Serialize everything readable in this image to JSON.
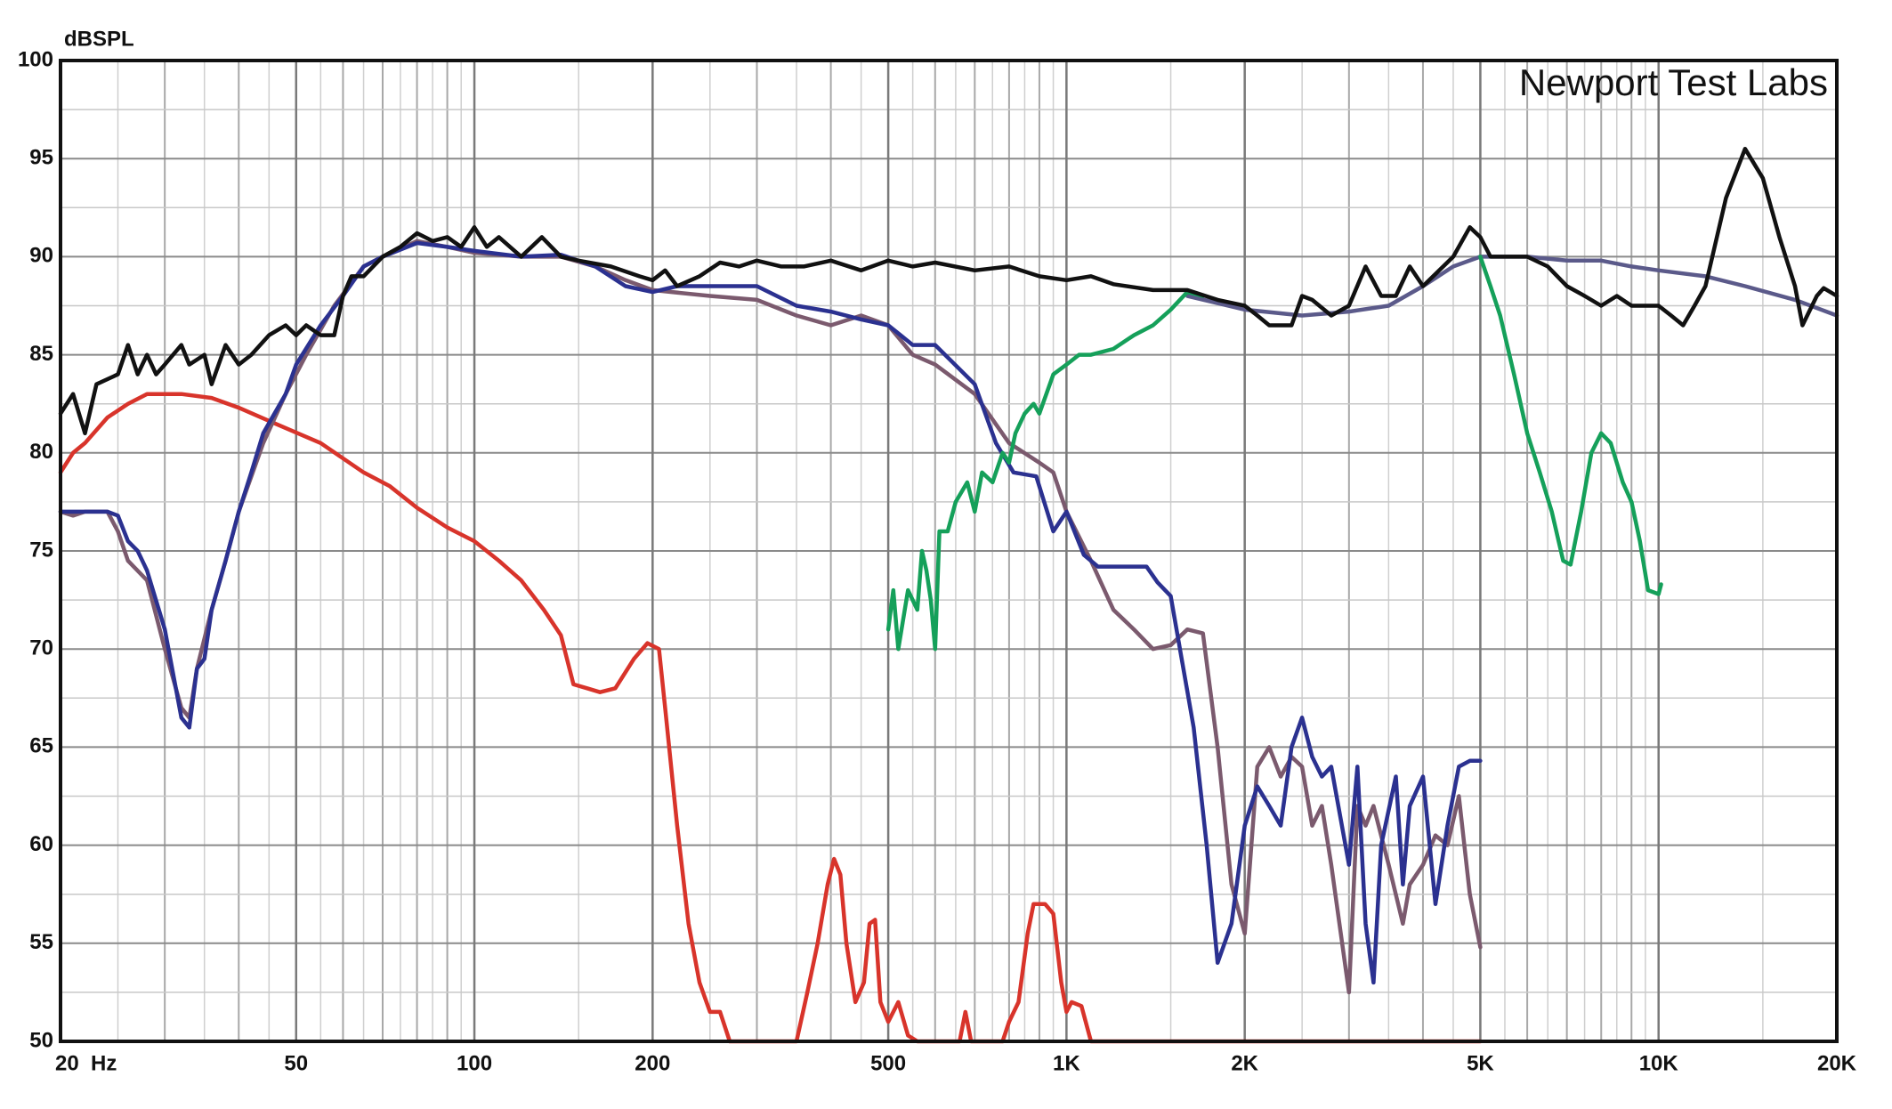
{
  "chart_data": {
    "type": "line",
    "ylabel": "dBSPL",
    "annotation": "Newport Test Labs",
    "xscale": "log",
    "grid": true,
    "xlim": [
      20,
      20000
    ],
    "ylim": [
      50,
      100
    ],
    "xticks": [
      {
        "value": 20,
        "label": "20  Hz"
      },
      50,
      100,
      200,
      500,
      {
        "value": 1000,
        "label": "1K"
      },
      {
        "value": 2000,
        "label": "2K"
      },
      {
        "value": 5000,
        "label": "5K"
      },
      {
        "value": 10000,
        "label": "10K"
      },
      {
        "value": 20000,
        "label": "20K"
      }
    ],
    "yticks": [
      50,
      55,
      60,
      65,
      70,
      75,
      80,
      85,
      90,
      95,
      100
    ],
    "series": [
      {
        "color": "#d8342b",
        "x": [
          20,
          21,
          22,
          24,
          26,
          28,
          32,
          36,
          40,
          46,
          55,
          65,
          72,
          80,
          90,
          100,
          110,
          120,
          131,
          140,
          147,
          155,
          163,
          173,
          186,
          196,
          205,
          210,
          220,
          230,
          240,
          250,
          260,
          270,
          350,
          365,
          380,
          395,
          405,
          415,
          425,
          440,
          455,
          465,
          475,
          485,
          500,
          520,
          540,
          560,
          660,
          675,
          690,
          780,
          800,
          830,
          860,
          880,
          920,
          950,
          980,
          1000,
          1020,
          1060,
          1100,
          5000
        ],
        "values": [
          79,
          80,
          80.5,
          81.8,
          82.5,
          83,
          83,
          82.8,
          82.3,
          81.5,
          80.5,
          79,
          78.3,
          77.2,
          76.2,
          75.5,
          74.5,
          73.5,
          72,
          70.7,
          68.2,
          68,
          67.8,
          68,
          69.5,
          70.3,
          70,
          67,
          61,
          56,
          53,
          51.5,
          51.5,
          50,
          50,
          52.5,
          55,
          58,
          59.3,
          58.5,
          55,
          52,
          53,
          56,
          56.2,
          52,
          51,
          52,
          50.3,
          50,
          50,
          51.5,
          50,
          50,
          51,
          52,
          55.5,
          57,
          57,
          56.5,
          53,
          51.5,
          52,
          51.8,
          50,
          50
        ]
      },
      {
        "color": "#7b5a6e",
        "x": [
          20,
          21,
          22,
          24,
          25,
          26,
          28,
          30,
          32,
          33,
          34,
          36,
          38,
          40,
          44,
          48,
          52,
          58,
          65,
          70,
          80,
          90,
          100,
          120,
          140,
          160,
          180,
          200,
          250,
          300,
          350,
          400,
          450,
          500,
          550,
          600,
          700,
          800,
          900,
          950,
          1000,
          1100,
          1200,
          1300,
          1400,
          1500,
          1600,
          1700,
          1800,
          1900,
          2000,
          2100,
          2200,
          2300,
          2400,
          2500,
          2600,
          2700,
          2800,
          3000,
          3100,
          3200,
          3300,
          3500,
          3700,
          3800,
          4000,
          4200,
          4400,
          4600,
          4800,
          5000
        ],
        "values": [
          77,
          76.8,
          77,
          77,
          76,
          74.5,
          73.5,
          70,
          67,
          66.5,
          69,
          72,
          74.5,
          77,
          80.5,
          83,
          85,
          87.5,
          89.5,
          90,
          90.8,
          90.5,
          90.2,
          90,
          90,
          89.5,
          88.8,
          88.3,
          88,
          87.8,
          87,
          86.5,
          87,
          86.5,
          85,
          84.5,
          83,
          80.5,
          79.5,
          79,
          77,
          74.5,
          72,
          71,
          70,
          70.2,
          71,
          70.8,
          65,
          58,
          55.5,
          64,
          65,
          63.5,
          64.5,
          64,
          61,
          62,
          59,
          52.5,
          62,
          61,
          62,
          59,
          56,
          58,
          59,
          60.5,
          60,
          62.5,
          57.5,
          54.8
        ]
      },
      {
        "color": "#2b3190",
        "x": [
          20,
          22,
          24,
          25,
          26,
          27,
          28,
          30,
          32,
          33,
          34,
          35,
          36,
          38,
          40,
          42,
          44,
          48,
          50,
          55,
          60,
          65,
          70,
          80,
          90,
          100,
          120,
          140,
          160,
          180,
          200,
          220,
          250,
          300,
          350,
          400,
          450,
          500,
          550,
          600,
          700,
          760,
          814,
          889,
          950,
          1000,
          1070,
          1130,
          1240,
          1365,
          1425,
          1500,
          1640,
          1725,
          1800,
          1900,
          2000,
          2100,
          2200,
          2300,
          2400,
          2500,
          2600,
          2700,
          2800,
          3000,
          3100,
          3200,
          3300,
          3400,
          3600,
          3700,
          3800,
          4000,
          4200,
          4400,
          4600,
          4800,
          5000
        ],
        "values": [
          77,
          77,
          77,
          76.8,
          75.5,
          75,
          74,
          71,
          66.5,
          66,
          69,
          69.5,
          72,
          74.5,
          77,
          79,
          81,
          83,
          84.5,
          86.5,
          88,
          89.5,
          90,
          90.7,
          90.5,
          90.3,
          90,
          90.1,
          89.5,
          88.5,
          88.2,
          88.5,
          88.5,
          88.5,
          87.5,
          87.2,
          86.8,
          86.5,
          85.5,
          85.5,
          83.5,
          80.5,
          79,
          78.8,
          76,
          77,
          74.8,
          74.2,
          74.2,
          74.2,
          73.4,
          72.7,
          66,
          60,
          54,
          56,
          61,
          63,
          62,
          61,
          65,
          66.5,
          64.5,
          63.5,
          64,
          59,
          64,
          56,
          53,
          60,
          63.5,
          58,
          62,
          63.5,
          57,
          61,
          64,
          64.3,
          64.3
        ]
      },
      {
        "color": "#5b5a8a",
        "x": [
          1600,
          2000,
          2500,
          3000,
          3500,
          4000,
          4500,
          5000,
          6000,
          7000,
          8000,
          9000,
          10000,
          12000,
          14000,
          17000,
          20000
        ],
        "values": [
          88,
          87.3,
          87,
          87.2,
          87.5,
          88.5,
          89.5,
          90,
          90,
          89.8,
          89.8,
          89.5,
          89.3,
          89,
          88.5,
          87.8,
          87
        ]
      },
      {
        "color": "#15a05a",
        "x": [
          500,
          510,
          520,
          540,
          560,
          570,
          580,
          590,
          600,
          610,
          630,
          650,
          680,
          700,
          720,
          750,
          780,
          800,
          820,
          850,
          880,
          900,
          950,
          1000,
          1050,
          1100,
          1200,
          1300,
          1400,
          1500,
          1600,
          1700,
          3000,
          5000,
          5200,
          5400,
          5700,
          6000,
          6300,
          6600,
          6900,
          7100,
          7400,
          7700,
          8000,
          8300,
          8700,
          9000,
          9300,
          9600,
          10000,
          10100
        ],
        "values": [
          71,
          73,
          70,
          73,
          72,
          75,
          74,
          72.5,
          70,
          76,
          76,
          77.5,
          78.5,
          77,
          79,
          78.5,
          80,
          79.5,
          81,
          82,
          82.5,
          82,
          84,
          84.5,
          85,
          85,
          85.3,
          86,
          86.5,
          87.3,
          88.2,
          88,
          null,
          90,
          88.5,
          87,
          84,
          81,
          79,
          77,
          74.5,
          74.3,
          77,
          80,
          81,
          80.5,
          78.5,
          77.5,
          75.5,
          73,
          72.8,
          73.3
        ]
      },
      {
        "color": "#111111",
        "x": [
          20,
          21,
          22,
          23,
          25,
          26,
          27,
          28,
          29,
          30,
          32,
          33,
          35,
          36,
          38,
          40,
          42,
          45,
          48,
          50,
          52,
          55,
          58,
          60,
          62,
          65,
          70,
          75,
          80,
          85,
          90,
          95,
          100,
          105,
          110,
          120,
          130,
          140,
          150,
          170,
          190,
          200,
          210,
          220,
          240,
          260,
          280,
          300,
          330,
          360,
          400,
          450,
          500,
          550,
          600,
          700,
          800,
          900,
          1000,
          1100,
          1200,
          1400,
          1600,
          1800,
          2000,
          2100,
          2200,
          2400,
          2500,
          2600,
          2800,
          3000,
          3200,
          3400,
          3600,
          3800,
          4000,
          4500,
          4800,
          5000,
          5200,
          5600,
          6000,
          6500,
          7000,
          7500,
          8000,
          8500,
          9000,
          10000,
          10500,
          11000,
          11500,
          12000,
          13000,
          14000,
          15000,
          16000,
          17000,
          17500,
          18500,
          19000,
          20000
        ],
        "values": [
          82,
          83,
          81,
          83.5,
          84,
          85.5,
          84,
          85,
          84,
          84.5,
          85.5,
          84.5,
          85,
          83.5,
          85.5,
          84.5,
          85,
          86,
          86.5,
          86,
          86.5,
          86,
          86,
          88,
          89,
          89,
          90,
          90.5,
          91.2,
          90.8,
          91,
          90.5,
          91.5,
          90.5,
          91,
          90,
          91,
          90,
          89.8,
          89.5,
          89,
          88.8,
          89.3,
          88.5,
          89,
          89.7,
          89.5,
          89.8,
          89.5,
          89.5,
          89.8,
          89.3,
          89.8,
          89.5,
          89.7,
          89.3,
          89.5,
          89,
          88.8,
          89,
          88.6,
          88.3,
          88.3,
          87.8,
          87.5,
          87,
          86.5,
          86.5,
          88,
          87.8,
          87,
          87.5,
          89.5,
          88,
          88,
          89.5,
          88.5,
          90,
          91.5,
          91,
          90,
          90,
          90,
          89.5,
          88.5,
          88,
          87.5,
          88,
          87.5,
          87.5,
          87,
          86.5,
          87.5,
          88.5,
          93,
          95.5,
          94,
          91,
          88.5,
          86.5,
          88,
          88.4,
          88
        ]
      }
    ]
  }
}
